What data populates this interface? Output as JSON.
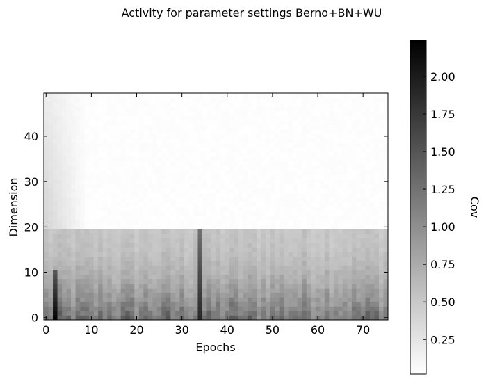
{
  "chart_data": [
    {
      "type": "heatmap",
      "title": "Activity for parameter settings Berno+BN+WU",
      "xlabel": "Epochs",
      "ylabel": "Dimension",
      "xlim": [
        -0.5,
        75.5
      ],
      "ylim": [
        -0.5,
        49.5
      ],
      "x_ticks": [
        0,
        10,
        20,
        30,
        40,
        50,
        60,
        70
      ],
      "y_ticks": [
        0,
        10,
        20,
        30,
        40
      ],
      "n_epochs": 76,
      "n_dimensions": 50,
      "colormap": "gray_r",
      "grid": false,
      "structure": {
        "active_dimensions": [
          0,
          19
        ],
        "inactive_dimensions": [
          20,
          49
        ],
        "inactive_level": 0.02,
        "active_level_range": [
          0.3,
          1.2
        ],
        "peak_epochs": [
          {
            "epoch": 2,
            "dimensions": [
              0,
              10
            ],
            "value": 2.2
          },
          {
            "epoch": 34,
            "dimensions": [
              0,
              19
            ],
            "value": 1.9
          }
        ],
        "early_decay": {
          "epochs": [
            0,
            8
          ],
          "dimensions": [
            20,
            49
          ],
          "start_value": 0.35
        }
      },
      "colorbar": {
        "label": "Cov",
        "range": [
          0.02,
          2.24
        ],
        "ticks": [
          0.25,
          0.5,
          0.75,
          1.0,
          1.25,
          1.5,
          1.75,
          2.0
        ],
        "tick_labels": [
          "0.25",
          "0.50",
          "0.75",
          "1.00",
          "1.25",
          "1.50",
          "1.75",
          "2.00"
        ]
      }
    }
  ]
}
